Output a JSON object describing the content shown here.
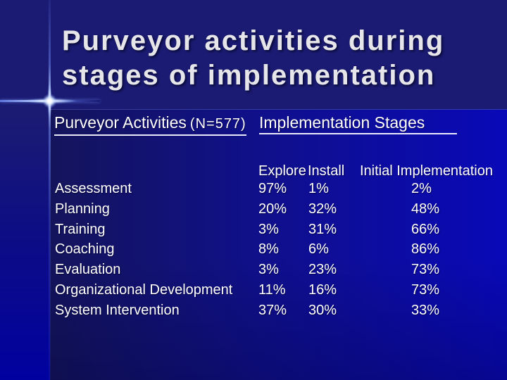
{
  "slide": {
    "title_lines": [
      "Purveyor activities during",
      "stages of implementation"
    ],
    "colors": {
      "background_top": "#1b1b73",
      "background_bottom": "#0101a0",
      "panel_left": "#14145c",
      "panel_right": "#0909b8",
      "title_text": "#e6e6ea",
      "text": "#ffffff",
      "accent_line": "#9db8ff"
    }
  },
  "table": {
    "header_left": "Purveyor Activities",
    "header_left_note": "(N=577)",
    "header_right": "Implementation Stages",
    "stage_columns": [
      "Explore",
      "Install",
      "Initial Implementation"
    ],
    "rows": [
      {
        "activity": "Assessment",
        "explore": "97%",
        "install": "1%",
        "initial_implementation": "2%"
      },
      {
        "activity": "Planning",
        "explore": "20%",
        "install": "32%",
        "initial_implementation": "48%"
      },
      {
        "activity": "Training",
        "explore": "3%",
        "install": "31%",
        "initial_implementation": "66%"
      },
      {
        "activity": "Coaching",
        "explore": "8%",
        "install": "6%",
        "initial_implementation": "86%"
      },
      {
        "activity": "Evaluation",
        "explore": "3%",
        "install": "23%",
        "initial_implementation": "73%"
      },
      {
        "activity": "Organizational Development",
        "explore": "11%",
        "install": "16%",
        "initial_implementation": "73%"
      },
      {
        "activity": "System Intervention",
        "explore": "37%",
        "install": "30%",
        "initial_implementation": "33%"
      }
    ]
  }
}
